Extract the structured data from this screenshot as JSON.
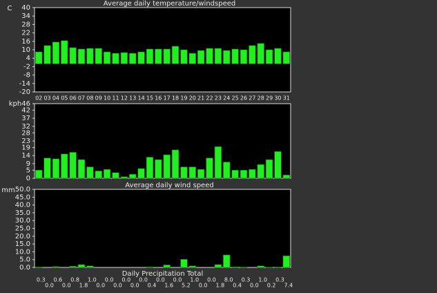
{
  "chart_data": [
    {
      "type": "bar",
      "title": "Average daily temperature/windspeed",
      "y_label": "C",
      "categories": [
        "02",
        "03",
        "04",
        "05",
        "06",
        "07",
        "08",
        "09",
        "10",
        "11",
        "12",
        "13",
        "14",
        "15",
        "16",
        "17",
        "18",
        "19",
        "20",
        "21",
        "22",
        "23",
        "24",
        "25",
        "26",
        "27",
        "28",
        "29",
        "30",
        "31"
      ],
      "values": [
        8.5,
        13,
        15.5,
        16.5,
        11.5,
        10.5,
        11,
        11,
        8.5,
        7.5,
        8,
        7.5,
        8.5,
        10.5,
        10.5,
        10.5,
        12.5,
        10,
        7.5,
        9.5,
        11,
        11,
        9.5,
        10.5,
        10,
        13,
        14.5,
        10,
        11,
        8.5
      ],
      "color": "#22ee22",
      "ylim": [
        -20,
        40
      ],
      "yticks": [
        40,
        34,
        28,
        22,
        16,
        10,
        4,
        -2,
        -8,
        -14,
        -20
      ]
    },
    {
      "type": "bar",
      "y_label": "kph",
      "values": [
        5,
        12.5,
        12,
        15,
        16,
        11.5,
        7,
        4.5,
        5.5,
        3.5,
        1,
        2.5,
        6,
        13,
        11.5,
        14.5,
        17.5,
        7,
        7,
        5.5,
        12.5,
        19.5,
        10,
        5,
        5,
        5.5,
        8.5,
        11.5,
        16.5,
        2
      ],
      "color": "#22ee22",
      "ylim": [
        0,
        46
      ],
      "yticks": [
        46,
        42,
        37,
        32,
        28,
        23,
        19,
        14,
        9,
        5,
        0
      ]
    },
    {
      "type": "bar",
      "title": "Average daily wind speed",
      "x_label": "Daily Precipitation Total",
      "y_label": "mm",
      "values": [
        0.3,
        0,
        0.6,
        0,
        0.8,
        1.8,
        1,
        0,
        0,
        0,
        0,
        0,
        0,
        0.4,
        0,
        1.6,
        0,
        5.2,
        1,
        0,
        0,
        1.8,
        8,
        0.4,
        0.3,
        0,
        1,
        0.2,
        0.3,
        7.4
      ],
      "value_labels": [
        "0.3",
        "0.0",
        "0.6",
        "0.0",
        "0.8",
        "1.8",
        "1.0",
        "0.0",
        "0.0",
        "0.0",
        "0.0",
        "0.0",
        "0.0",
        "0.4",
        "0.0",
        "1.6",
        "0.0",
        "5.2",
        "1.0",
        "0.0",
        "0.0",
        "1.8",
        "8.0",
        "0.4",
        "0.3",
        "0.0",
        "1.0",
        "0.2",
        "0.3",
        "7.4"
      ],
      "color": "#22ee22",
      "ylim": [
        0,
        50
      ],
      "yticks": [
        {
          "value": 50,
          "label": "50.0"
        },
        {
          "value": 45,
          "label": "45.0"
        },
        {
          "value": 40,
          "label": "40.0"
        },
        {
          "value": 35,
          "label": "35.0"
        },
        {
          "value": 30,
          "label": "30.0"
        },
        {
          "value": 25,
          "label": "25.0"
        },
        {
          "value": 20,
          "label": "20.0"
        },
        {
          "value": 15,
          "label": "15.0"
        },
        {
          "value": 10,
          "label": "10.0"
        },
        {
          "value": 5,
          "label": "5.0"
        },
        {
          "value": 0,
          "label": "0.0"
        }
      ]
    }
  ]
}
